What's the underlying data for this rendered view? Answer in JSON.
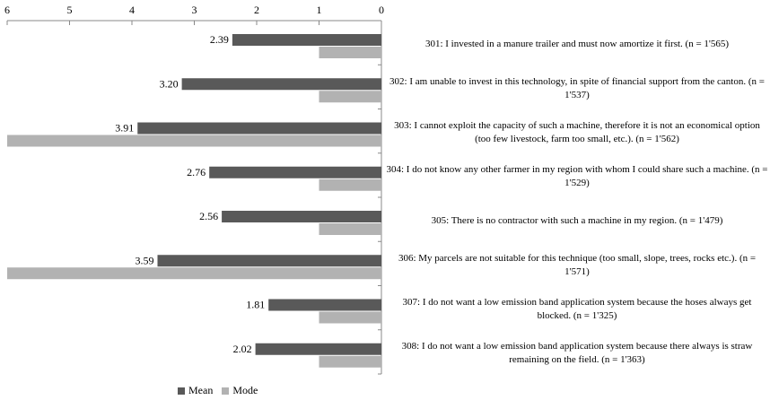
{
  "chart_data": {
    "type": "bar",
    "orientation": "horizontal",
    "x_axis_reversed": true,
    "xlim": [
      0,
      6
    ],
    "x_ticks": [
      "0",
      "1",
      "2",
      "3",
      "4",
      "5",
      "6"
    ],
    "legend_position": "bottom",
    "categories": [
      "301: I invested in a manure trailer and must now amortize it first. (n = 1'565)",
      "302: I am unable to invest in this technology, in spite of financial support from the canton. (n = 1'537)",
      "303: I cannot exploit the capacity of such a machine, therefore it is not an economical option (too few livestock, farm too small, etc.). (n = 1'562)",
      "304: I do not know any other farmer in my region with whom I could share such a machine. (n = 1'529)",
      "305: There is no contractor with such a machine in my region. (n = 1'479)",
      "306: My parcels are not suitable for this technique (too small, slope, trees, rocks etc.). (n = 1'571)",
      "307: I do not want a low emission band application system because the hoses always get blocked. (n = 1'325)",
      "308: I do not want a low emission band application system because there always is straw remaining on the field. (n = 1'363)"
    ],
    "series": [
      {
        "name": "Mean",
        "color": "#595959",
        "values": [
          2.39,
          3.2,
          3.91,
          2.76,
          2.56,
          3.59,
          1.81,
          2.02
        ],
        "labels": [
          "2.39",
          "3.20",
          "3.91",
          "2.76",
          "2.56",
          "3.59",
          "1.81",
          "2.02"
        ]
      },
      {
        "name": "Mode",
        "color": "#b2b2b2",
        "values": [
          1,
          1,
          6,
          1,
          1,
          6,
          1,
          1
        ]
      }
    ]
  }
}
